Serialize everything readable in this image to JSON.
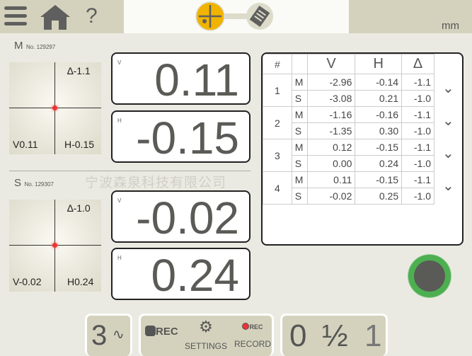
{
  "header": {
    "unit": "mm",
    "help": "?"
  },
  "watermark": "宁波森泉科技有限公司",
  "m": {
    "label": "M",
    "serial": "No. 129297",
    "angle": "∆-1.1",
    "v_small": "V0.11",
    "h_small": "H-0.15",
    "v_label": "V",
    "v": "0.11",
    "h_label": "H",
    "h": "-0.15"
  },
  "s": {
    "label": "S",
    "serial": "No. 129307",
    "angle": "∆-1.0",
    "v_small": "V-0.02",
    "h_small": "H0.24",
    "v_label": "V",
    "v": "-0.02",
    "h_label": "H",
    "h": "0.24"
  },
  "table": {
    "headers": [
      "#",
      "",
      "V",
      "H",
      "∆"
    ],
    "groups": [
      {
        "n": "1",
        "rows": [
          [
            "M",
            "-2.96",
            "-0.14",
            "-1.1"
          ],
          [
            "S",
            "-3.08",
            "0.21",
            "-1.0"
          ]
        ]
      },
      {
        "n": "2",
        "rows": [
          [
            "M",
            "-1.16",
            "-0.16",
            "-1.1"
          ],
          [
            "S",
            "-1.35",
            "0.30",
            "-1.0"
          ]
        ]
      },
      {
        "n": "3",
        "rows": [
          [
            "M",
            "0.12",
            "-0.15",
            "-1.1"
          ],
          [
            "S",
            "0.00",
            "0.24",
            "-1.0"
          ]
        ]
      },
      {
        "n": "4",
        "rows": [
          [
            "M",
            "0.11",
            "-0.15",
            "-1.1"
          ],
          [
            "S",
            "-0.02",
            "0.25",
            "-1.0"
          ]
        ]
      }
    ]
  },
  "bottom": {
    "mode": "3",
    "rec": "REC",
    "settings": "SETTINGS",
    "record": "RECORD",
    "record_badge": "REC",
    "zero": "0",
    "half": "½",
    "one": "1"
  },
  "colors": {
    "accent": "#f0b400",
    "go": "#4caf50"
  }
}
